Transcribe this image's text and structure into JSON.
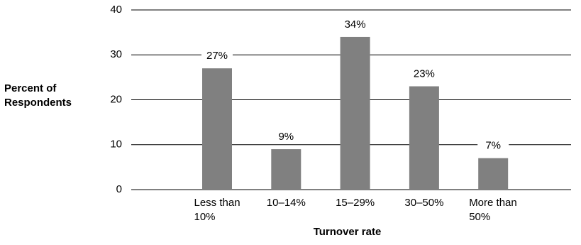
{
  "chart_data": {
    "type": "bar",
    "y_axis_label": "Percent of\nRespondents",
    "x_axis_label": "Turnover rate",
    "categories": [
      "Less than\n10%",
      "10–14%",
      "15–29%",
      "30–50%",
      "More than\n50%"
    ],
    "values": [
      27,
      9,
      34,
      23,
      7
    ],
    "value_labels": [
      "27%",
      "9%",
      "34%",
      "23%",
      "7%"
    ],
    "color": "#808080",
    "ylim": [
      0,
      40
    ],
    "yticks": [
      0,
      10,
      20,
      30,
      40
    ],
    "grid": true
  }
}
